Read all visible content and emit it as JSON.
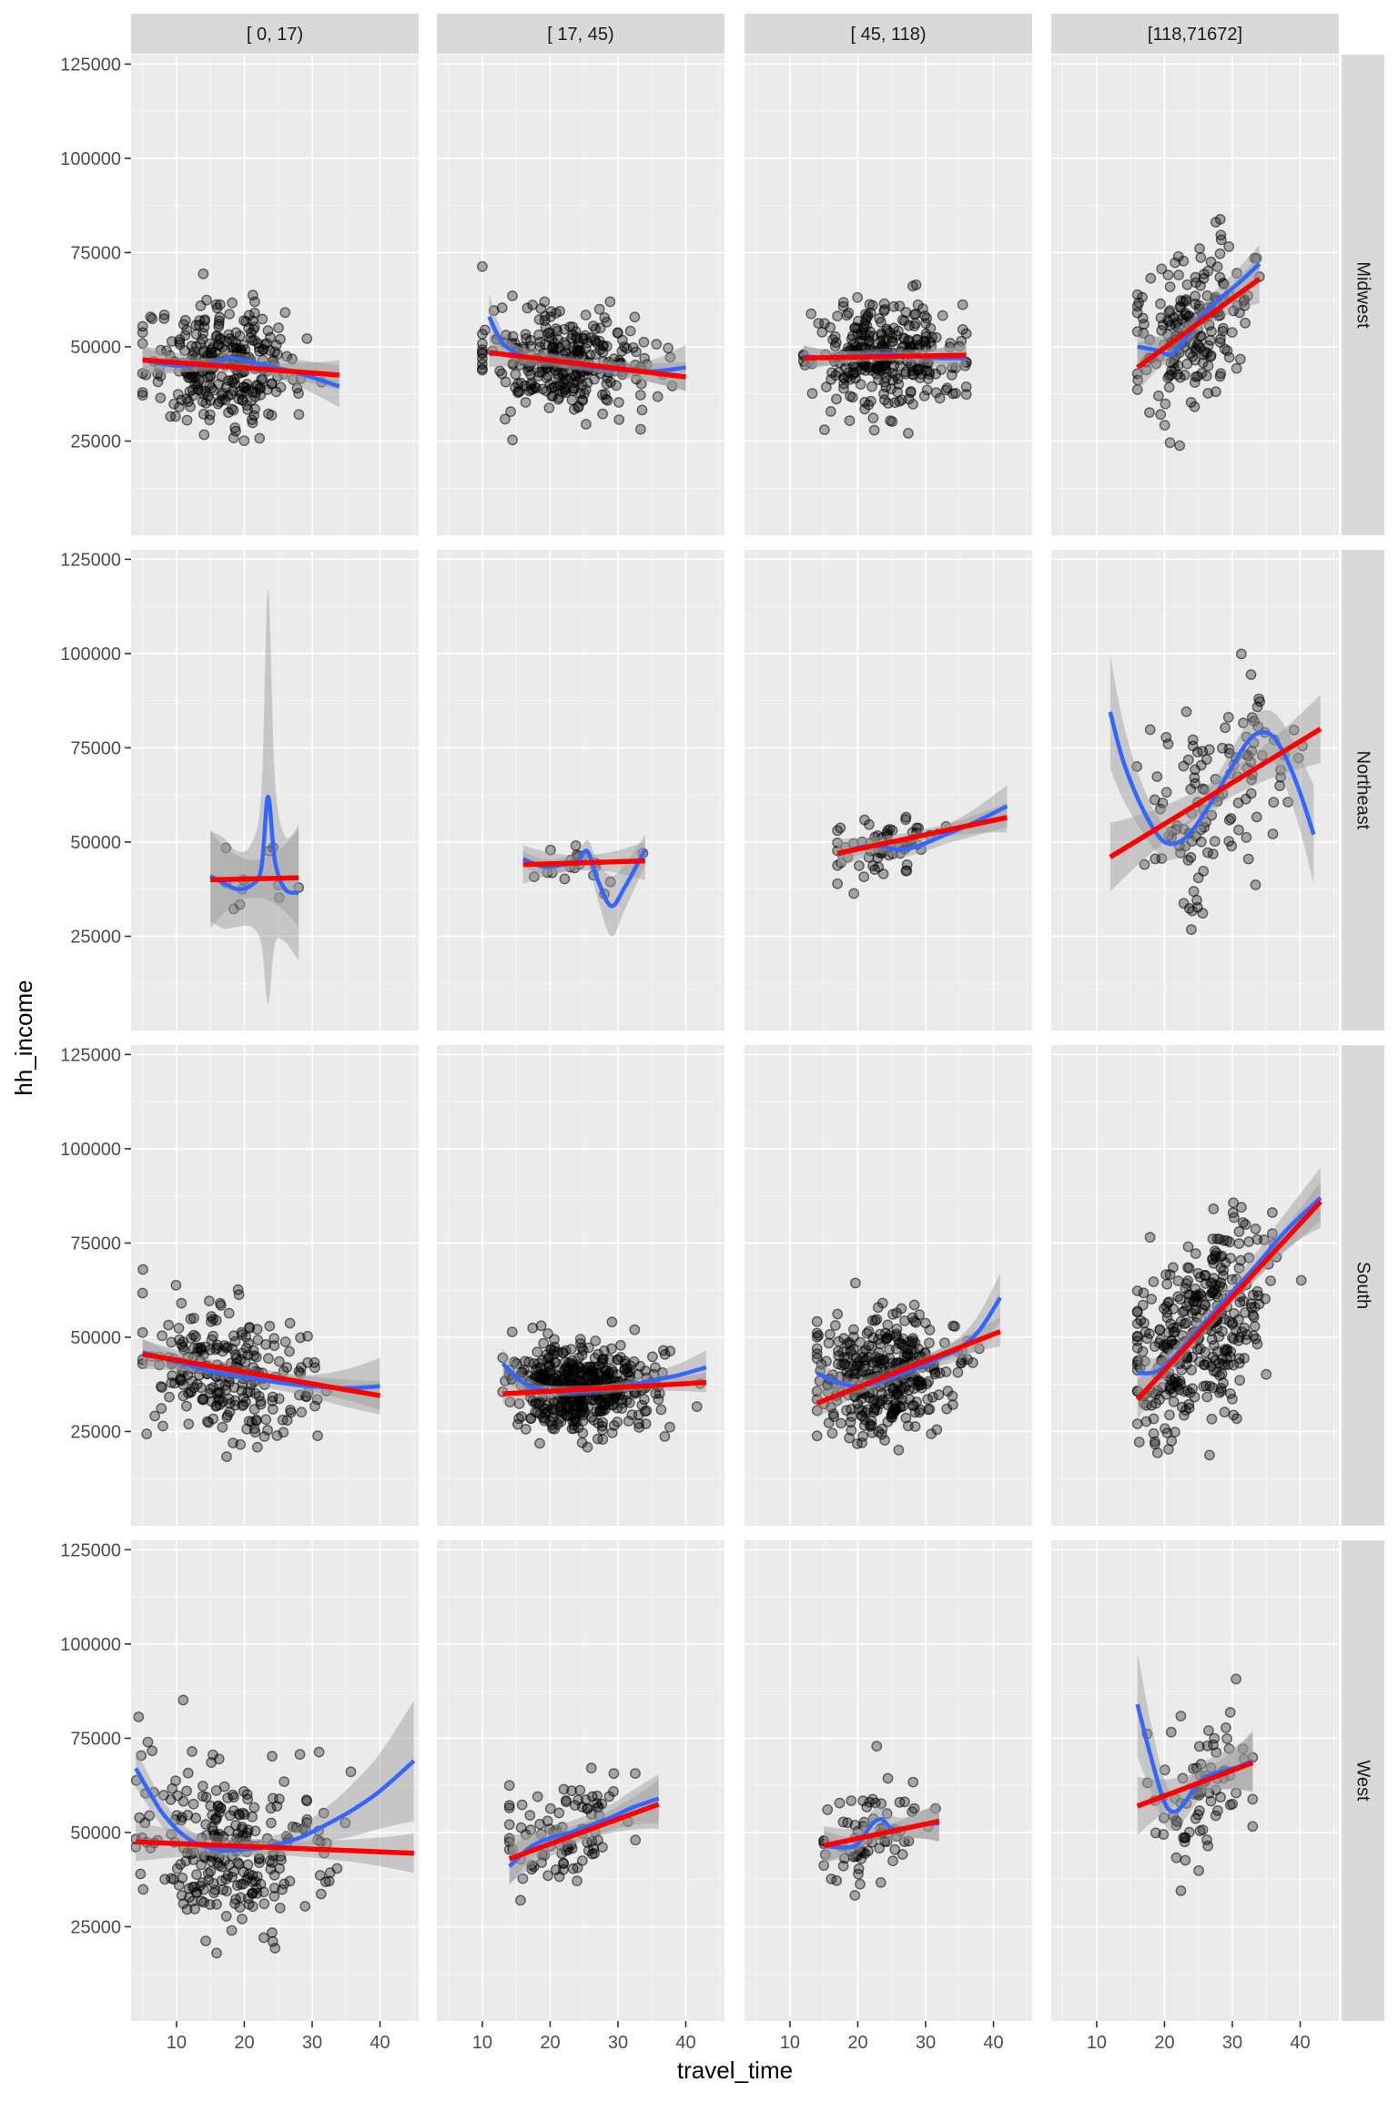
{
  "chart_data": {
    "type": "scatter",
    "title": "",
    "xlabel": "travel_time",
    "ylabel": "hh_income",
    "xlim": [
      3.3,
      45.7
    ],
    "ylim": [
      0,
      127500
    ],
    "x_ticks": [
      "10",
      "20",
      "30",
      "40"
    ],
    "x_tick_values": [
      10,
      20,
      30,
      40
    ],
    "y_ticks": [
      "25000",
      "50000",
      "75000",
      "100000",
      "125000"
    ],
    "y_tick_values": [
      25000,
      50000,
      75000,
      100000,
      125000
    ],
    "column_facets": [
      "[  0,   17)",
      "[ 17,   45)",
      "[ 45,  118)",
      "[118,71672]"
    ],
    "row_facets": [
      "Midwest",
      "Northeast",
      "South",
      "West"
    ],
    "layers": [
      "points (alpha 0.3)",
      "loess smooth (blue) with confidence band",
      "linear fit lm (red) with confidence band"
    ],
    "colors": {
      "loess": "#3366FF",
      "lm": "#FF0000",
      "panel": "#EBEBEB",
      "strip": "#D9D9D9",
      "ribbon": "#999999"
    },
    "panels": [
      {
        "row": "Midwest",
        "col": "[  0,   17)",
        "n": 300,
        "x_range": [
          5,
          34
        ],
        "x_center": 17,
        "x_sd": 5.5,
        "y_center": 45000,
        "y_sd": 8000,
        "lm": {
          "x": [
            5,
            34
          ],
          "y": [
            46500,
            42500
          ],
          "se": 1500
        },
        "loess": {
          "x": [
            5,
            10,
            15,
            18,
            22,
            28,
            34
          ],
          "y": [
            46500,
            45000,
            45500,
            47000,
            45500,
            43000,
            39500
          ],
          "se": [
            3500,
            2000,
            1500,
            1500,
            2000,
            3500,
            5500
          ]
        }
      },
      {
        "row": "Midwest",
        "col": "[ 17,   45)",
        "n": 300,
        "x_range": [
          10,
          40
        ],
        "x_center": 22,
        "x_sd": 6,
        "y_center": 45000,
        "y_sd": 7000,
        "lm": {
          "x": [
            11,
            40
          ],
          "y": [
            48500,
            42000
          ],
          "se": 1500
        },
        "loess": {
          "x": [
            11,
            13,
            16,
            20,
            25,
            30,
            35,
            40
          ],
          "y": [
            58000,
            51000,
            47500,
            46500,
            45000,
            44000,
            43500,
            44500
          ],
          "se": [
            6000,
            3000,
            2000,
            1500,
            1500,
            2000,
            3000,
            6000
          ]
        }
      },
      {
        "row": "Midwest",
        "col": "[ 45,  118)",
        "n": 300,
        "x_range": [
          12,
          36
        ],
        "x_center": 24,
        "x_sd": 5.5,
        "y_center": 47000,
        "y_sd": 7500,
        "lm": {
          "x": [
            12,
            36
          ],
          "y": [
            47000,
            47800
          ],
          "se": 1200
        },
        "loess": {
          "x": [
            12,
            16,
            20,
            24,
            28,
            32,
            36
          ],
          "y": [
            47500,
            47000,
            47500,
            48000,
            47500,
            47000,
            47000
          ],
          "se": [
            3000,
            1800,
            1500,
            1500,
            1800,
            2500,
            3500
          ]
        }
      },
      {
        "row": "Midwest",
        "col": "[118,71672]",
        "n": 200,
        "x_range": [
          16,
          34
        ],
        "x_center": 24,
        "x_sd": 4.5,
        "y_center": 55000,
        "y_sd": 10000,
        "lm": {
          "x": [
            16,
            34
          ],
          "y": [
            44500,
            68000
          ],
          "se": 2500
        },
        "loess": {
          "x": [
            16,
            19,
            21,
            23,
            25,
            27,
            29,
            31,
            34
          ],
          "y": [
            50000,
            49000,
            48000,
            52000,
            57000,
            61000,
            64000,
            67000,
            72000
          ],
          "se": [
            4500,
            3500,
            3000,
            3000,
            3000,
            3000,
            3500,
            4000,
            5000
          ]
        }
      },
      {
        "row": "Northeast",
        "col": "[  0,   17)",
        "n": 12,
        "x_range": [
          15,
          28
        ],
        "x_center": 23,
        "x_sd": 4,
        "y_center": 40000,
        "y_sd": 3000,
        "lm": {
          "x": [
            15,
            28
          ],
          "y": [
            40000,
            40500
          ],
          "se": 5000
        },
        "loess": {
          "x": [
            15,
            17,
            19,
            21,
            22.5,
            23.5,
            24.5,
            26,
            28
          ],
          "y": [
            41000,
            39000,
            37500,
            38500,
            43000,
            62000,
            45000,
            37500,
            36500
          ],
          "se": [
            12000,
            12000,
            10000,
            11000,
            20000,
            55000,
            22000,
            14000,
            18000
          ]
        }
      },
      {
        "row": "Northeast",
        "col": "[ 17,   45)",
        "n": 20,
        "x_range": [
          16,
          34
        ],
        "x_center": 23,
        "x_sd": 4,
        "y_center": 45000,
        "y_sd": 2500,
        "lm": {
          "x": [
            16,
            34
          ],
          "y": [
            44000,
            45000
          ],
          "se": 2000
        },
        "loess": {
          "x": [
            16,
            19,
            22,
            24,
            25.5,
            27,
            29,
            31,
            34
          ],
          "y": [
            45500,
            43500,
            44000,
            45000,
            47500,
            40000,
            33000,
            38000,
            48000
          ],
          "se": [
            2000,
            2000,
            1800,
            2000,
            3000,
            5000,
            8000,
            6000,
            4000
          ]
        }
      },
      {
        "row": "Northeast",
        "col": "[ 45,  118)",
        "n": 60,
        "x_range": [
          17,
          42
        ],
        "x_center": 24,
        "x_sd": 4.5,
        "y_center": 48000,
        "y_sd": 4500,
        "lm": {
          "x": [
            17,
            42
          ],
          "y": [
            47000,
            56500
          ],
          "se": 1500
        },
        "loess": {
          "x": [
            17,
            20,
            23,
            26,
            29,
            33,
            37,
            42
          ],
          "y": [
            46500,
            48500,
            49000,
            48000,
            49000,
            52000,
            55000,
            59500
          ],
          "se": [
            3000,
            2000,
            1800,
            2000,
            2000,
            2500,
            3500,
            5500
          ]
        }
      },
      {
        "row": "Northeast",
        "col": "[118,71672]",
        "n": 120,
        "x_range": [
          12,
          43
        ],
        "x_center": 27,
        "x_sd": 5.5,
        "y_center": 60000,
        "y_sd": 12000,
        "lm": {
          "x": [
            12,
            43
          ],
          "y": [
            46000,
            80000
          ],
          "se": 3500
        },
        "loess": {
          "x": [
            12,
            14,
            17,
            20,
            23,
            26,
            29,
            32,
            34,
            36,
            38,
            40,
            42
          ],
          "y": [
            84500,
            71000,
            58000,
            50000,
            51000,
            58000,
            67000,
            76000,
            79000,
            78000,
            72000,
            63000,
            52000
          ],
          "se": [
            15000,
            10000,
            6000,
            4500,
            4000,
            4000,
            4500,
            5000,
            5500,
            6500,
            8000,
            10000,
            13000
          ]
        }
      },
      {
        "row": "South",
        "col": "[  0,   17)",
        "n": 250,
        "x_range": [
          5,
          40
        ],
        "x_center": 18,
        "x_sd": 6,
        "y_center": 40000,
        "y_sd": 8500,
        "lm": {
          "x": [
            5,
            40
          ],
          "y": [
            45500,
            34500
          ],
          "se": 1500
        },
        "loess": {
          "x": [
            5,
            10,
            15,
            20,
            25,
            30,
            35,
            40
          ],
          "y": [
            46000,
            43500,
            41000,
            39500,
            38000,
            37000,
            36500,
            37000
          ],
          "se": [
            3500,
            2000,
            1500,
            1500,
            2000,
            3000,
            5000,
            7500
          ]
        }
      },
      {
        "row": "South",
        "col": "[ 17,   45)",
        "n": 450,
        "x_range": [
          13,
          43
        ],
        "x_center": 25,
        "x_sd": 5.5,
        "y_center": 37000,
        "y_sd": 6000,
        "lm": {
          "x": [
            13,
            43
          ],
          "y": [
            35000,
            38000
          ],
          "se": 1000
        },
        "loess": {
          "x": [
            13,
            16,
            19,
            23,
            27,
            31,
            35,
            39,
            43
          ],
          "y": [
            43000,
            38000,
            36000,
            35500,
            36000,
            37000,
            38500,
            40000,
            42000
          ],
          "se": [
            4000,
            2500,
            1500,
            1200,
            1200,
            1500,
            2000,
            3000,
            4500
          ]
        }
      },
      {
        "row": "South",
        "col": "[ 45,  118)",
        "n": 350,
        "x_range": [
          14,
          41
        ],
        "x_center": 24,
        "x_sd": 5,
        "y_center": 40000,
        "y_sd": 8000,
        "lm": {
          "x": [
            14,
            41
          ],
          "y": [
            32500,
            51500
          ],
          "se": 1500
        },
        "loess": {
          "x": [
            14,
            17,
            20,
            23,
            26,
            29,
            32,
            35,
            38,
            41
          ],
          "y": [
            40500,
            38000,
            37000,
            38000,
            40000,
            42000,
            44500,
            47000,
            52000,
            60500
          ],
          "se": [
            3500,
            2500,
            1800,
            1500,
            1500,
            1800,
            2200,
            3000,
            4500,
            6500
          ]
        }
      },
      {
        "row": "South",
        "col": "[118,71672]",
        "n": 350,
        "x_range": [
          16,
          43
        ],
        "x_center": 25,
        "x_sd": 5,
        "y_center": 50000,
        "y_sd": 14000,
        "lm": {
          "x": [
            16,
            43
          ],
          "y": [
            33500,
            86000
          ],
          "se": 2000
        },
        "loess": {
          "x": [
            16,
            19,
            22,
            25,
            28,
            31,
            34,
            37,
            40,
            43
          ],
          "y": [
            40500,
            41000,
            46000,
            52000,
            58000,
            64000,
            70000,
            76500,
            82000,
            87000
          ],
          "se": [
            5000,
            3500,
            2500,
            2500,
            2500,
            3000,
            3500,
            4500,
            6000,
            8000
          ]
        }
      },
      {
        "row": "West",
        "col": "[  0,   17)",
        "n": 260,
        "x_range": [
          4,
          45
        ],
        "x_center": 18,
        "x_sd": 7,
        "y_center": 46000,
        "y_sd": 12000,
        "lm": {
          "x": [
            4,
            45
          ],
          "y": [
            47500,
            44500
          ],
          "se": 2000
        },
        "loess": {
          "x": [
            4,
            8,
            12,
            16,
            20,
            24,
            28,
            32,
            36,
            40,
            45
          ],
          "y": [
            67000,
            55000,
            48000,
            45500,
            45500,
            46500,
            48500,
            52000,
            56000,
            61000,
            69000
          ],
          "se": [
            5000,
            3500,
            2500,
            2000,
            2000,
            2500,
            3000,
            4500,
            7000,
            10000,
            16000
          ]
        }
      },
      {
        "row": "West",
        "col": "[ 17,   45)",
        "n": 90,
        "x_range": [
          14,
          36
        ],
        "x_center": 22,
        "x_sd": 5,
        "y_center": 50000,
        "y_sd": 8000,
        "lm": {
          "x": [
            14,
            36
          ],
          "y": [
            43000,
            57500
          ],
          "se": 2500
        },
        "loess": {
          "x": [
            14,
            17,
            20,
            23,
            26,
            29,
            32,
            36
          ],
          "y": [
            41000,
            46000,
            48500,
            50000,
            52000,
            54000,
            56500,
            59000
          ],
          "se": [
            5000,
            3500,
            3000,
            3000,
            3000,
            3500,
            4500,
            6500
          ]
        }
      },
      {
        "row": "West",
        "col": "[ 45,  118)",
        "n": 70,
        "x_range": [
          15,
          32
        ],
        "x_center": 22,
        "x_sd": 4,
        "y_center": 49000,
        "y_sd": 6000,
        "lm": {
          "x": [
            15,
            32
          ],
          "y": [
            46500,
            53000
          ],
          "se": 2000
        },
        "loess": {
          "x": [
            15,
            18,
            20,
            22,
            23.5,
            25,
            27,
            29,
            32
          ],
          "y": [
            46500,
            46000,
            47000,
            52000,
            53500,
            51000,
            51000,
            52000,
            52500
          ],
          "se": [
            4000,
            3000,
            3000,
            3500,
            3500,
            3500,
            3000,
            3500,
            5000
          ]
        }
      },
      {
        "row": "West",
        "col": "[118,71672]",
        "n": 80,
        "x_range": [
          16,
          33
        ],
        "x_center": 25,
        "x_sd": 4,
        "y_center": 60000,
        "y_sd": 10000,
        "lm": {
          "x": [
            16,
            33
          ],
          "y": [
            57000,
            68500
          ],
          "se": 3000
        },
        "loess": {
          "x": [
            16,
            18,
            20,
            21.5,
            23,
            25,
            27,
            29,
            31,
            33
          ],
          "y": [
            84000,
            70000,
            58000,
            55500,
            58000,
            63000,
            65500,
            66500,
            67500,
            69000
          ],
          "se": [
            14000,
            9000,
            6000,
            5000,
            4500,
            4500,
            4500,
            5000,
            6000,
            8000
          ]
        }
      }
    ]
  }
}
